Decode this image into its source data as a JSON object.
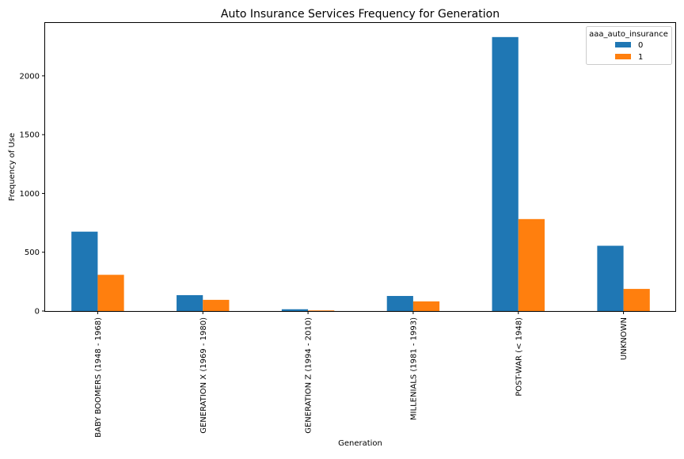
{
  "chart_data": {
    "type": "bar",
    "title": "Auto Insurance Services Frequency for Generation",
    "xlabel": "Generation",
    "ylabel": "Frequency of Use",
    "categories": [
      "BABY BOOMERS (1948 - 1968)",
      "GENERATION X (1969 - 1980)",
      "GENERATION Z (1994 - 2010)",
      "MILLENIALS (1981 - 1993)",
      "POST-WAR (< 1948)",
      "UNKNOWN"
    ],
    "series": [
      {
        "name": "0",
        "color": "#1f77b4",
        "values": [
          675,
          135,
          15,
          128,
          2330,
          555
        ]
      },
      {
        "name": "1",
        "color": "#ff7f0e",
        "values": [
          308,
          95,
          5,
          82,
          782,
          188
        ]
      }
    ],
    "ylim": [
      0,
      2450
    ],
    "yticks": [
      0,
      500,
      1000,
      1500,
      2000
    ],
    "ytick_labels": [
      "0",
      "500",
      "1000",
      "1500",
      "2000"
    ],
    "legend": {
      "title": "aaa_auto_insurance",
      "position": "top-right"
    },
    "grid": false
  }
}
